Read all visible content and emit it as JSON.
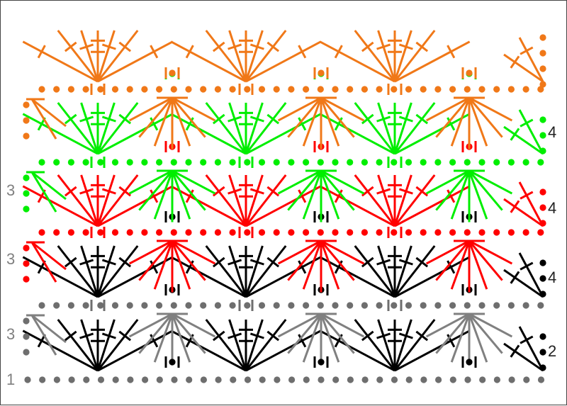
{
  "diagram": {
    "type": "crochet-stitch-chart",
    "colors": {
      "row1": "#6e6e6e",
      "row2": "#000000",
      "row3": "#ff0000",
      "row4": "#00ee00",
      "row5": "#f07818",
      "gray_fan": "#808080",
      "label_gray": "#808080",
      "label_black": "#222222"
    },
    "row_labels": [
      {
        "text": "1",
        "side": "left"
      },
      {
        "text": "2",
        "side": "right"
      },
      {
        "text": "3",
        "side": "left"
      },
      {
        "text": "4",
        "side": "right"
      },
      {
        "text": "3",
        "side": "left"
      },
      {
        "text": "4",
        "side": "right"
      },
      {
        "text": "3",
        "side": "left"
      },
      {
        "text": "4",
        "side": "right"
      }
    ],
    "symbols": [
      "chain-stitch",
      "single-crochet",
      "double-crochet",
      "treble-crochet",
      "shell-fan"
    ]
  }
}
